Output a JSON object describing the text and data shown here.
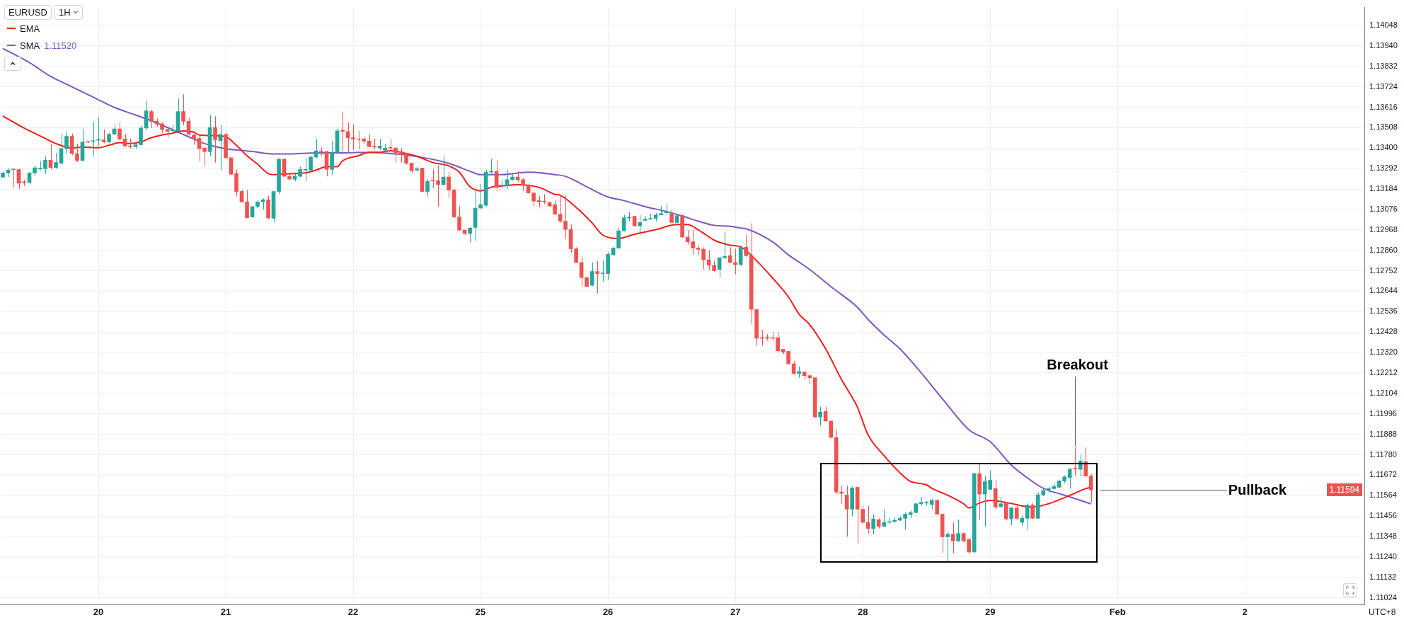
{
  "chart_data": {
    "type": "candlestick",
    "title": "EURUSD",
    "subtitle": "1H",
    "categories": [
      null,
      null,
      null,
      null,
      null,
      null,
      null,
      null,
      null,
      null,
      null,
      null,
      null,
      null,
      null,
      null,
      null,
      null,
      "20",
      null,
      null,
      null,
      null,
      null,
      null,
      null,
      null,
      null,
      null,
      null,
      null,
      null,
      null,
      null,
      null,
      null,
      null,
      null,
      null,
      null,
      null,
      null,
      "21",
      null,
      null,
      null,
      null,
      null,
      null,
      null,
      null,
      null,
      null,
      null,
      null,
      null,
      null,
      null,
      null,
      null,
      null,
      null,
      null,
      null,
      null,
      null,
      "22",
      null,
      null,
      null,
      null,
      null,
      null,
      null,
      null,
      null,
      null,
      null,
      null,
      null,
      null,
      null,
      null,
      null,
      null,
      null,
      null,
      null,
      null,
      null,
      "25",
      null,
      null,
      null,
      null,
      null,
      null,
      null,
      null,
      null,
      null,
      null,
      null,
      null,
      null,
      null,
      null,
      null,
      null,
      null,
      null,
      null,
      null,
      null,
      "26",
      null,
      null,
      null,
      null,
      null,
      null,
      null,
      null,
      null,
      null,
      null,
      null,
      null,
      null,
      null,
      null,
      null,
      null,
      null,
      null,
      null,
      null,
      null,
      "27",
      null,
      null,
      null,
      null,
      null,
      null,
      null,
      null,
      null,
      null,
      null,
      null,
      null,
      null,
      null,
      null,
      null,
      null,
      null,
      null,
      null,
      null,
      null,
      "28",
      null,
      null,
      null,
      null,
      null,
      null,
      null,
      null,
      null,
      null,
      null,
      null,
      null,
      null,
      null,
      null,
      null,
      null,
      null,
      null,
      null,
      null,
      null,
      "29",
      null,
      null,
      null,
      null,
      null,
      null,
      null,
      null,
      null,
      null,
      null,
      null,
      null,
      null,
      null,
      null,
      null,
      null,
      null,
      null,
      null,
      null,
      null,
      "Feb",
      null,
      null,
      null,
      null,
      null,
      null,
      null,
      null,
      null,
      null,
      null,
      null,
      null,
      null,
      null,
      null,
      null,
      null,
      null,
      null,
      null,
      null,
      null,
      "2",
      null,
      null,
      null,
      null,
      null,
      null,
      null,
      null,
      null,
      null,
      null,
      null,
      null,
      null,
      null,
      null,
      null,
      null,
      null,
      null,
      null,
      null
    ],
    "ohlc": [
      [
        1.13247,
        1.13276,
        1.13244,
        1.13269
      ],
      [
        1.13269,
        1.13295,
        1.13247,
        1.13284
      ],
      [
        1.13287,
        1.13291,
        1.13193,
        1.13286
      ],
      [
        1.13287,
        1.13291,
        1.13185,
        1.13214
      ],
      [
        1.1322,
        1.13233,
        1.132,
        1.13218
      ],
      [
        1.13218,
        1.13273,
        1.13211,
        1.13269
      ],
      [
        1.13269,
        1.13309,
        1.13255,
        1.13296
      ],
      [
        1.13291,
        1.13331,
        1.13284,
        1.13293
      ],
      [
        1.13291,
        1.13357,
        1.13265,
        1.13336
      ],
      [
        1.13336,
        1.13422,
        1.13287,
        1.13298
      ],
      [
        1.13298,
        1.13375,
        1.13291,
        1.13324
      ],
      [
        1.1332,
        1.13477,
        1.13313,
        1.13397
      ],
      [
        1.13397,
        1.13491,
        1.13367,
        1.13462
      ],
      [
        1.13462,
        1.13477,
        1.13364,
        1.13371
      ],
      [
        1.13371,
        1.13422,
        1.13327,
        1.13335
      ],
      [
        1.13335,
        1.13502,
        1.13331,
        1.13433
      ],
      [
        1.13433,
        1.1344,
        1.13426,
        1.13431
      ],
      [
        1.13435,
        1.13539,
        1.13357,
        1.13437
      ],
      [
        1.13442,
        1.13564,
        1.13411,
        1.13444
      ],
      [
        1.13444,
        1.13499,
        1.13426,
        1.13433
      ],
      [
        1.13433,
        1.1348,
        1.13426,
        1.13473
      ],
      [
        1.13473,
        1.13528,
        1.13469,
        1.13502
      ],
      [
        1.13502,
        1.13539,
        1.1344,
        1.13448
      ],
      [
        1.13448,
        1.13473,
        1.13408,
        1.13411
      ],
      [
        1.13409,
        1.13451,
        1.13397,
        1.13408
      ],
      [
        1.13408,
        1.13426,
        1.13397,
        1.13418
      ],
      [
        1.13418,
        1.13517,
        1.13415,
        1.13506
      ],
      [
        1.13506,
        1.13648,
        1.13495,
        1.13597
      ],
      [
        1.13593,
        1.13604,
        1.13506,
        1.13542
      ],
      [
        1.13542,
        1.13557,
        1.13513,
        1.13528
      ],
      [
        1.13528,
        1.13535,
        1.1348,
        1.13499
      ],
      [
        1.13499,
        1.13502,
        1.13455,
        1.13488
      ],
      [
        1.13491,
        1.13524,
        1.13484,
        1.13493
      ],
      [
        1.13491,
        1.13662,
        1.13488,
        1.13593
      ],
      [
        1.13593,
        1.13684,
        1.1352,
        1.13542
      ],
      [
        1.13542,
        1.13557,
        1.13466,
        1.13473
      ],
      [
        1.13469,
        1.13477,
        1.13418,
        1.13448
      ],
      [
        1.13451,
        1.13466,
        1.13331,
        1.13397
      ],
      [
        1.134,
        1.13404,
        1.13309,
        1.13382
      ],
      [
        1.13382,
        1.13575,
        1.13357,
        1.13509
      ],
      [
        1.13509,
        1.13568,
        1.13324,
        1.13444
      ],
      [
        1.1344,
        1.13524,
        1.13284,
        1.13473
      ],
      [
        1.13473,
        1.13488,
        1.13342,
        1.13349
      ],
      [
        1.13349,
        1.13349,
        1.13258,
        1.13262
      ],
      [
        1.13265,
        1.13287,
        1.13145,
        1.13171
      ],
      [
        1.13171,
        1.13178,
        1.13113,
        1.13116
      ],
      [
        1.13116,
        1.13178,
        1.13029,
        1.13032
      ],
      [
        1.13036,
        1.13094,
        1.13032,
        1.13091
      ],
      [
        1.13091,
        1.13127,
        1.13083,
        1.13116
      ],
      [
        1.13116,
        1.13134,
        1.13076,
        1.13127
      ],
      [
        1.13127,
        1.13149,
        1.13025,
        1.13032
      ],
      [
        1.13029,
        1.13174,
        1.13007,
        1.13171
      ],
      [
        1.13171,
        1.13346,
        1.13156,
        1.13342
      ],
      [
        1.13342,
        1.13346,
        1.13251,
        1.13251
      ],
      [
        1.13251,
        1.13262,
        1.13233,
        1.13236
      ],
      [
        1.13236,
        1.13262,
        1.13225,
        1.13251
      ],
      [
        1.13251,
        1.13302,
        1.13247,
        1.13287
      ],
      [
        1.13284,
        1.13349,
        1.13225,
        1.13286
      ],
      [
        1.13284,
        1.1336,
        1.13276,
        1.13353
      ],
      [
        1.13353,
        1.13448,
        1.13346,
        1.13386
      ],
      [
        1.13386,
        1.13404,
        1.13357,
        1.13382
      ],
      [
        1.13382,
        1.13386,
        1.13251,
        1.13287
      ],
      [
        1.13287,
        1.13437,
        1.13258,
        1.13378
      ],
      [
        1.13378,
        1.13509,
        1.13375,
        1.13491
      ],
      [
        1.13495,
        1.13593,
        1.13382,
        1.13488
      ],
      [
        1.13488,
        1.13535,
        1.13375,
        1.13455
      ],
      [
        1.13455,
        1.13524,
        1.13389,
        1.13448
      ],
      [
        1.13448,
        1.13491,
        1.13393,
        1.13446
      ],
      [
        1.13448,
        1.13459,
        1.13422,
        1.13437
      ],
      [
        1.13437,
        1.13473,
        1.13404,
        1.13408
      ],
      [
        1.13408,
        1.13451,
        1.13393,
        1.13406
      ],
      [
        1.134,
        1.13448,
        1.13389,
        1.13411
      ],
      [
        1.13389,
        1.13422,
        1.13382,
        1.134
      ],
      [
        1.13404,
        1.13448,
        1.13389,
        1.134
      ],
      [
        1.134,
        1.13408,
        1.13324,
        1.13375
      ],
      [
        1.13382,
        1.134,
        1.13324,
        1.13367
      ],
      [
        1.13367,
        1.13375,
        1.13313,
        1.1332
      ],
      [
        1.1332,
        1.13324,
        1.13269,
        1.1328
      ],
      [
        1.13284,
        1.13302,
        1.13276,
        1.13291
      ],
      [
        1.13295,
        1.13295,
        1.13167,
        1.13171
      ],
      [
        1.13171,
        1.13236,
        1.13145,
        1.13225
      ],
      [
        1.13229,
        1.13287,
        1.13189,
        1.13227
      ],
      [
        1.13229,
        1.13309,
        1.13091,
        1.13207
      ],
      [
        1.13207,
        1.1336,
        1.13204,
        1.13247
      ],
      [
        1.13247,
        1.13273,
        1.13134,
        1.13178
      ],
      [
        1.13178,
        1.13185,
        1.13032,
        1.13036
      ],
      [
        1.13036,
        1.13094,
        1.12963,
        1.12967
      ],
      [
        1.12967,
        1.12967,
        1.12941,
        1.12949
      ],
      [
        1.12949,
        1.12981,
        1.12901,
        1.12978
      ],
      [
        1.12981,
        1.13193,
        1.12909,
        1.13083
      ],
      [
        1.13083,
        1.13211,
        1.1308,
        1.13102
      ],
      [
        1.13098,
        1.13287,
        1.13091,
        1.13273
      ],
      [
        1.13273,
        1.13342,
        1.13265,
        1.13276
      ],
      [
        1.13276,
        1.13335,
        1.13174,
        1.13193
      ],
      [
        1.132,
        1.13233,
        1.13189,
        1.13204
      ],
      [
        1.132,
        1.13284,
        1.13185,
        1.13233
      ],
      [
        1.13233,
        1.13262,
        1.13229,
        1.13247
      ],
      [
        1.13247,
        1.1328,
        1.13222,
        1.13233
      ],
      [
        1.13233,
        1.1324,
        1.13174,
        1.13204
      ],
      [
        1.13204,
        1.13211,
        1.1316,
        1.13163
      ],
      [
        1.13163,
        1.13167,
        1.13094,
        1.1312
      ],
      [
        1.13123,
        1.13149,
        1.13087,
        1.13116
      ],
      [
        1.1312,
        1.13156,
        1.13105,
        1.13116
      ],
      [
        1.13113,
        1.13116,
        1.13087,
        1.13094
      ],
      [
        1.13102,
        1.13123,
        1.13047,
        1.13051
      ],
      [
        1.13051,
        1.13149,
        1.13007,
        1.13014
      ],
      [
        1.13014,
        1.13149,
        1.12919,
        1.1297
      ],
      [
        1.1297,
        1.12996,
        1.12847,
        1.12868
      ],
      [
        1.12868,
        1.12876,
        1.12792,
        1.12796
      ],
      [
        1.12796,
        1.12828,
        1.12668,
        1.12716
      ],
      [
        1.12716,
        1.12719,
        1.12665,
        1.12668
      ],
      [
        1.12675,
        1.12796,
        1.12672,
        1.12748
      ],
      [
        1.12748,
        1.12803,
        1.12632,
        1.12737
      ],
      [
        1.12737,
        1.12807,
        1.12694,
        1.12739
      ],
      [
        1.12737,
        1.1285,
        1.12705,
        1.12839
      ],
      [
        1.12836,
        1.12879,
        1.12832,
        1.12872
      ],
      [
        1.12872,
        1.12978,
        1.12868,
        1.12963
      ],
      [
        1.12963,
        1.13047,
        1.1296,
        1.13032
      ],
      [
        1.13032,
        1.13062,
        1.13014,
        1.13036
      ],
      [
        1.1304,
        1.1304,
        1.12985,
        1.12989
      ],
      [
        1.12989,
        1.13047,
        1.12941,
        1.13007
      ],
      [
        1.13018,
        1.1304,
        1.13014,
        1.13025
      ],
      [
        1.13025,
        1.13054,
        1.13021,
        1.13027
      ],
      [
        1.13029,
        1.13058,
        1.13014,
        1.13047
      ],
      [
        1.13047,
        1.13094,
        1.13047,
        1.13054
      ],
      [
        1.13058,
        1.13105,
        1.13047,
        1.1306
      ],
      [
        1.13054,
        1.13072,
        1.13003,
        1.13007
      ],
      [
        1.13007,
        1.13051,
        1.13003,
        1.13043
      ],
      [
        1.13043,
        1.13051,
        1.12927,
        1.1293
      ],
      [
        1.1293,
        1.12967,
        1.1289,
        1.12905
      ],
      [
        1.12905,
        1.12967,
        1.12836,
        1.12872
      ],
      [
        1.12872,
        1.12887,
        1.12832,
        1.12865
      ],
      [
        1.12865,
        1.12876,
        1.12759,
        1.1281
      ],
      [
        1.1281,
        1.12861,
        1.12756,
        1.12781
      ],
      [
        1.12781,
        1.12803,
        1.12748,
        1.12752
      ],
      [
        1.12759,
        1.12825,
        1.12716,
        1.12821
      ],
      [
        1.12821,
        1.1296,
        1.12814,
        1.12828
      ],
      [
        1.12832,
        1.12876,
        1.12792,
        1.12796
      ],
      [
        1.12796,
        1.12868,
        1.12734,
        1.12785
      ],
      [
        1.12785,
        1.12887,
        1.12777,
        1.12876
      ],
      [
        1.12876,
        1.12941,
        1.12825,
        1.12832
      ],
      [
        1.12832,
        1.13003,
        1.12468,
        1.12548
      ],
      [
        1.12548,
        1.12548,
        1.12355,
        1.12395
      ],
      [
        1.12399,
        1.12439,
        1.12355,
        1.12395
      ],
      [
        1.12399,
        1.12417,
        1.12384,
        1.12397
      ],
      [
        1.12399,
        1.12428,
        1.1238,
        1.12395
      ],
      [
        1.12399,
        1.12428,
        1.12319,
        1.12329
      ],
      [
        1.12337,
        1.1234,
        1.12311,
        1.12322
      ],
      [
        1.12326,
        1.12326,
        1.12257,
        1.1226
      ],
      [
        1.1226,
        1.12275,
        1.12202,
        1.12209
      ],
      [
        1.12209,
        1.12246,
        1.12187,
        1.1222
      ],
      [
        1.12217,
        1.1222,
        1.12173,
        1.12198
      ],
      [
        1.12198,
        1.12206,
        1.12151,
        1.12187
      ],
      [
        1.12187,
        1.12187,
        1.11976,
        1.1198
      ],
      [
        1.1198,
        1.12034,
        1.11933,
        1.12005
      ],
      [
        1.12009,
        1.12034,
        1.11954,
        1.11958
      ],
      [
        1.11958,
        1.11962,
        1.11867,
        1.11871
      ],
      [
        1.11871,
        1.11914,
        1.11572,
        1.11583
      ],
      [
        1.11583,
        1.11616,
        1.11521,
        1.11576
      ],
      [
        1.11568,
        1.11616,
        1.11346,
        1.11492
      ],
      [
        1.11492,
        1.11612,
        1.11455,
        1.11605
      ],
      [
        1.11608,
        1.11612,
        1.11313,
        1.11492
      ],
      [
        1.11492,
        1.11514,
        1.11415,
        1.11423
      ],
      [
        1.11423,
        1.1151,
        1.11364,
        1.1139
      ],
      [
        1.1139,
        1.11466,
        1.11361,
        1.11441
      ],
      [
        1.11437,
        1.11444,
        1.1139,
        1.11401
      ],
      [
        1.11401,
        1.11492,
        1.11401,
        1.11423
      ],
      [
        1.11423,
        1.11448,
        1.11415,
        1.11424
      ],
      [
        1.11426,
        1.11452,
        1.11423,
        1.11434
      ],
      [
        1.11434,
        1.11455,
        1.1143,
        1.11444
      ],
      [
        1.11444,
        1.11474,
        1.11383,
        1.11466
      ],
      [
        1.11463,
        1.11485,
        1.11444,
        1.11474
      ],
      [
        1.11474,
        1.11525,
        1.1147,
        1.11521
      ],
      [
        1.11521,
        1.11557,
        1.1151,
        1.11528
      ],
      [
        1.11525,
        1.11536,
        1.1151,
        1.11526
      ],
      [
        1.11517,
        1.11546,
        1.11492,
        1.11539
      ],
      [
        1.11539,
        1.11543,
        1.11463,
        1.11466
      ],
      [
        1.11466,
        1.1147,
        1.11262,
        1.11346
      ],
      [
        1.11346,
        1.11375,
        1.11215,
        1.11361
      ],
      [
        1.11361,
        1.11423,
        1.11259,
        1.11324
      ],
      [
        1.11324,
        1.11437,
        1.11321,
        1.11364
      ],
      [
        1.11364,
        1.11368,
        1.11317,
        1.11324
      ],
      [
        1.11332,
        1.11339,
        1.11255,
        1.11266
      ],
      [
        1.11266,
        1.11685,
        1.11262,
        1.11681
      ],
      [
        1.11681,
        1.11732,
        1.11434,
        1.11572
      ],
      [
        1.11572,
        1.11667,
        1.11401,
        1.11638
      ],
      [
        1.11597,
        1.11696,
        1.11594,
        1.11645
      ],
      [
        1.11601,
        1.11648,
        1.11492,
        1.11503
      ],
      [
        1.11506,
        1.11557,
        1.11499,
        1.11521
      ],
      [
        1.11525,
        1.11528,
        1.11434,
        1.11441
      ],
      [
        1.11441,
        1.11503,
        1.11408,
        1.11499
      ],
      [
        1.11499,
        1.1151,
        1.11437,
        1.11444
      ],
      [
        1.11423,
        1.11459,
        1.11401,
        1.11444
      ],
      [
        1.11444,
        1.11525,
        1.11383,
        1.11514
      ],
      [
        1.11514,
        1.11525,
        1.11441,
        1.11444
      ],
      [
        1.11444,
        1.11579,
        1.11441,
        1.11568
      ],
      [
        1.11568,
        1.11601,
        1.11561,
        1.1159
      ],
      [
        1.11594,
        1.11612,
        1.11579,
        1.11601
      ],
      [
        1.11601,
        1.1163,
        1.11594,
        1.11612
      ],
      [
        1.11608,
        1.11648,
        1.11605,
        1.11641
      ],
      [
        1.11641,
        1.1167,
        1.1163,
        1.11663
      ],
      [
        1.11659,
        1.1171,
        1.11601,
        1.11703
      ],
      [
        1.11707,
        1.1182,
        1.11667,
        1.11705
      ],
      [
        1.11703,
        1.11783,
        1.11663,
        1.11747
      ],
      [
        1.11743,
        1.1182,
        1.11663,
        1.11667
      ],
      [
        1.11667,
        1.11678,
        1.11528,
        1.11594
      ],
      null,
      null,
      null,
      null,
      null,
      null,
      null,
      null,
      null,
      null,
      null,
      null,
      null,
      null,
      null,
      null,
      null,
      null,
      null,
      null,
      null,
      null,
      null,
      null,
      null,
      null,
      null,
      null,
      null,
      null,
      null,
      null,
      null,
      null,
      null,
      null,
      null,
      null,
      null,
      null,
      null,
      null,
      null,
      null,
      null,
      null,
      null,
      null,
      null,
      null,
      null
    ],
    "colors": [
      "#26a69a",
      "#26a69a",
      "#ef5350",
      "#ef5350",
      "#ef5350",
      "#26a69a",
      "#26a69a",
      "#26a69a",
      "#26a69a",
      "#ef5350",
      "#26a69a",
      "#26a69a",
      "#26a69a",
      "#ef5350",
      "#ef5350",
      "#26a69a",
      "#ef5350",
      "#26a69a",
      "#26a69a",
      "#ef5350",
      "#26a69a",
      "#26a69a",
      "#ef5350",
      "#ef5350",
      "#ef5350",
      "#26a69a",
      "#26a69a",
      "#26a69a",
      "#ef5350",
      "#ef5350",
      "#ef5350",
      "#ef5350",
      "#26a69a",
      "#26a69a",
      "#ef5350",
      "#ef5350",
      "#ef5350",
      "#ef5350",
      "#ef5350",
      "#26a69a",
      "#ef5350",
      "#26a69a",
      "#ef5350",
      "#ef5350",
      "#ef5350",
      "#ef5350",
      "#ef5350",
      "#26a69a",
      "#26a69a",
      "#26a69a",
      "#ef5350",
      "#26a69a",
      "#26a69a",
      "#ef5350",
      "#ef5350",
      "#26a69a",
      "#26a69a",
      "#26a69a",
      "#26a69a",
      "#26a69a",
      "#ef5350",
      "#ef5350",
      "#26a69a",
      "#26a69a",
      "#ef5350",
      "#ef5350",
      "#ef5350",
      "#ef5350",
      "#ef5350",
      "#ef5350",
      "#ef5350",
      "#26a69a",
      "#26a69a",
      "#ef5350",
      "#ef5350",
      "#ef5350",
      "#ef5350",
      "#ef5350",
      "#26a69a",
      "#ef5350",
      "#26a69a",
      "#ef5350",
      "#ef5350",
      "#26a69a",
      "#ef5350",
      "#ef5350",
      "#ef5350",
      "#ef5350",
      "#26a69a",
      "#26a69a",
      "#26a69a",
      "#26a69a",
      "#26a69a",
      "#ef5350",
      "#26a69a",
      "#26a69a",
      "#26a69a",
      "#ef5350",
      "#ef5350",
      "#ef5350",
      "#ef5350",
      "#ef5350",
      "#ef5350",
      "#ef5350",
      "#ef5350",
      "#ef5350",
      "#ef5350",
      "#ef5350",
      "#ef5350",
      "#ef5350",
      "#ef5350",
      "#26a69a",
      "#ef5350",
      "#26a69a",
      "#26a69a",
      "#26a69a",
      "#26a69a",
      "#26a69a",
      "#26a69a",
      "#ef5350",
      "#26a69a",
      "#26a69a",
      "#26a69a",
      "#26a69a",
      "#26a69a",
      "#26a69a",
      "#ef5350",
      "#26a69a",
      "#ef5350",
      "#ef5350",
      "#ef5350",
      "#ef5350",
      "#ef5350",
      "#ef5350",
      "#ef5350",
      "#26a69a",
      "#26a69a",
      "#ef5350",
      "#ef5350",
      "#26a69a",
      "#ef5350",
      "#ef5350",
      "#ef5350",
      "#ef5350",
      "#ef5350",
      "#ef5350",
      "#ef5350",
      "#ef5350",
      "#ef5350",
      "#ef5350",
      "#26a69a",
      "#ef5350",
      "#ef5350",
      "#ef5350",
      "#26a69a",
      "#ef5350",
      "#ef5350",
      "#ef5350",
      "#ef5350",
      "#ef5350",
      "#26a69a",
      "#ef5350",
      "#ef5350",
      "#ef5350",
      "#26a69a",
      "#ef5350",
      "#26a69a",
      "#26a69a",
      "#26a69a",
      "#26a69a",
      "#26a69a",
      "#26a69a",
      "#26a69a",
      "#26a69a",
      "#26a69a",
      "#26a69a",
      "#ef5350",
      "#ef5350",
      "#26a69a",
      "#ef5350",
      "#26a69a",
      "#ef5350",
      "#ef5350",
      "#26a69a",
      "#ef5350",
      "#26a69a",
      "#26a69a",
      "#ef5350",
      "#26a69a",
      "#ef5350",
      "#26a69a",
      "#ef5350",
      "#26a69a",
      "#26a69a",
      "#ef5350",
      "#26a69a",
      "#26a69a",
      "#26a69a",
      "#26a69a",
      "#26a69a",
      "#26a69a",
      "#26a69a",
      "#ef5350",
      "#26a69a",
      "#ef5350",
      "#ef5350",
      null,
      null,
      null,
      null,
      null,
      null,
      null,
      null,
      null,
      null,
      null,
      null,
      null,
      null,
      null,
      null,
      null,
      null,
      null,
      null,
      null,
      null,
      null,
      null,
      null,
      null,
      null,
      null,
      null,
      null,
      null,
      null,
      null,
      null,
      null,
      null,
      null,
      null,
      null,
      null,
      null,
      null,
      null,
      null,
      null,
      null,
      null,
      null,
      null,
      null,
      null
    ],
    "series": [
      {
        "name": "EMA",
        "type": "line",
        "color": "#f21c1c",
        "values": [
          1.1357,
          null,
          null,
          null,
          1.13506,
          null,
          null,
          null,
          1.13451,
          null,
          1.13424,
          null,
          null,
          1.134,
          null,
          1.13406,
          null,
          null,
          1.13402,
          null,
          1.13415,
          null,
          1.13429,
          null,
          1.13424,
          null,
          1.13433,
          null,
          1.13455,
          null,
          1.13469,
          null,
          1.13479,
          null,
          1.13491,
          null,
          1.13484,
          1.13469,
          null,
          null,
          1.13466,
          null,
          1.1346,
          null,
          1.13415,
          null,
          1.1336,
          null,
          1.13315,
          null,
          1.13265,
          1.1326,
          null,
          null,
          1.13265,
          null,
          null,
          1.13269,
          null,
          1.13284,
          null,
          1.13302,
          null,
          1.13302,
          1.13333,
          null,
          null,
          1.1336,
          null,
          1.13378,
          null,
          1.13378,
          null,
          1.13386,
          null,
          1.13378,
          null,
          null,
          1.13357,
          null,
          null,
          1.13324,
          null,
          null,
          1.13306,
          null,
          1.13273,
          null,
          1.13196,
          null,
          1.13174,
          null,
          1.13193,
          null,
          1.132,
          null,
          null,
          1.13207,
          null,
          null,
          null,
          1.13193,
          null,
          null,
          1.13156,
          1.13151,
          null,
          null,
          1.13087,
          null,
          null,
          1.13005,
          null,
          1.12941,
          null,
          null,
          1.12923,
          null,
          null,
          1.12945,
          null,
          null,
          null,
          1.12969,
          null,
          null,
          null,
          1.12996,
          null,
          1.12996,
          null,
          1.12969,
          null,
          null,
          1.12914,
          null,
          null,
          1.12887,
          null,
          1.12878,
          null,
          null,
          1.12805,
          null,
          null,
          1.12714,
          null,
          null,
          1.12614,
          null,
          1.12523,
          null,
          1.12468,
          null,
          null,
          1.1234,
          null,
          null,
          1.12177,
          null,
          null,
          1.12031,
          null,
          1.11885,
          null,
          null,
          1.11776,
          null,
          null,
          1.11685,
          null,
          1.11639,
          null,
          null,
          1.11621,
          1.11603,
          null,
          null,
          1.11566,
          null,
          null,
          1.11521,
          1.11499,
          null,
          1.11525,
          null,
          1.11539,
          null,
          null,
          1.11528,
          null,
          null,
          1.1151,
          null,
          1.11503,
          null,
          null,
          1.11521,
          null,
          null,
          null,
          1.11565,
          null,
          null,
          1.11601,
          1.11608,
          null,
          null,
          null,
          null,
          null,
          null,
          null,
          null,
          null,
          null,
          null,
          null,
          null,
          null,
          null,
          null,
          null,
          null,
          null,
          null,
          null,
          null,
          null,
          null,
          null,
          null,
          null,
          null,
          null,
          null,
          null,
          null,
          null,
          null,
          null,
          null,
          null,
          null,
          null,
          null,
          null,
          null,
          null,
          null,
          null,
          null,
          null,
          null,
          null,
          null,
          null
        ]
      },
      {
        "name": "SMA",
        "type": "line",
        "color": "#7e57c2",
        "values": [
          1.13927,
          null,
          null,
          null,
          null,
          1.13852,
          null,
          null,
          null,
          1.13779,
          null,
          null,
          null,
          1.13724,
          null,
          null,
          null,
          1.1367,
          null,
          null,
          null,
          1.13615,
          null,
          null,
          null,
          1.13575,
          null,
          null,
          null,
          1.13533,
          null,
          null,
          1.13497,
          null,
          null,
          1.1346,
          null,
          null,
          1.13424,
          null,
          null,
          null,
          1.13397,
          null,
          null,
          null,
          null,
          1.13382,
          null,
          null,
          null,
          1.13369,
          null,
          null,
          1.13369,
          null,
          null,
          null,
          null,
          1.13375,
          null,
          null,
          null,
          null,
          1.13375,
          null,
          null,
          null,
          null,
          1.13378,
          null,
          null,
          null,
          null,
          1.13369,
          null,
          null,
          null,
          null,
          1.13351,
          null,
          null,
          null,
          null,
          1.1332,
          null,
          null,
          null,
          1.13278,
          null,
          1.1326,
          null,
          null,
          null,
          1.1326,
          null,
          null,
          null,
          null,
          1.13273,
          null,
          null,
          null,
          null,
          1.1326,
          null,
          1.13251,
          null,
          null,
          null,
          1.13196,
          null,
          null,
          null,
          1.13142,
          null,
          null,
          1.13123,
          null,
          null,
          null,
          1.13091,
          null,
          null,
          null,
          1.13065,
          null,
          null,
          1.13041,
          null,
          null,
          1.13014,
          null,
          null,
          1.12992,
          null,
          null,
          1.12987,
          null,
          1.12978,
          1.12974,
          null,
          null,
          null,
          null,
          1.12905,
          null,
          null,
          1.12836,
          null,
          null,
          null,
          1.12759,
          null,
          null,
          null,
          1.12668,
          null,
          null,
          null,
          null,
          1.12559,
          null,
          1.12495,
          null,
          null,
          1.12413,
          null,
          null,
          1.1234,
          null,
          null,
          null,
          1.12213,
          null,
          null,
          null,
          1.12076,
          null,
          null,
          null,
          null,
          1.11912,
          null,
          null,
          null,
          1.11849,
          null,
          null,
          null,
          1.11725,
          null,
          null,
          1.11658,
          null,
          null,
          1.11603,
          null,
          null,
          null,
          1.11566,
          null,
          1.11548,
          null,
          null,
          1.1152,
          null,
          null,
          null,
          null,
          null,
          null,
          null,
          null,
          null,
          null,
          null,
          null,
          null,
          null,
          null,
          null,
          null,
          null,
          null,
          null,
          null,
          null,
          null,
          null,
          null,
          null,
          null,
          null,
          null,
          null,
          null,
          null,
          null,
          null,
          null,
          null,
          null,
          null,
          null,
          null,
          null,
          null,
          null,
          null,
          null,
          null,
          null,
          null,
          null,
          null,
          null
        ]
      }
    ],
    "ylim": [
      1.10989,
      1.14143
    ],
    "yticks": [
      1.11024,
      1.11132,
      {
        "value": 1.1124,
        "label": "1.11240"
      },
      1.11348,
      1.11456,
      1.11564,
      1.11672,
      {
        "value": 1.1178,
        "label": "1.11780"
      },
      1.11888,
      1.11996,
      1.12104,
      1.12212,
      {
        "value": 1.1232,
        "label": "1.12320"
      },
      1.12428,
      1.12536,
      1.12644,
      1.12752,
      {
        "value": 1.1286,
        "label": "1.12860"
      },
      1.12968,
      1.13076,
      1.13184,
      1.13292,
      {
        "value": 1.134,
        "label": "1.13400"
      },
      1.13508,
      1.13616,
      1.13724,
      1.13832,
      {
        "value": 1.1394,
        "label": "1.13940"
      },
      1.14048
    ],
    "grid": true,
    "legend": "top left",
    "marker": "none",
    "annotations": [
      "1.11520",
      "Breakout",
      "Pullback",
      "1.11594",
      "UTC+8"
    ]
  }
}
